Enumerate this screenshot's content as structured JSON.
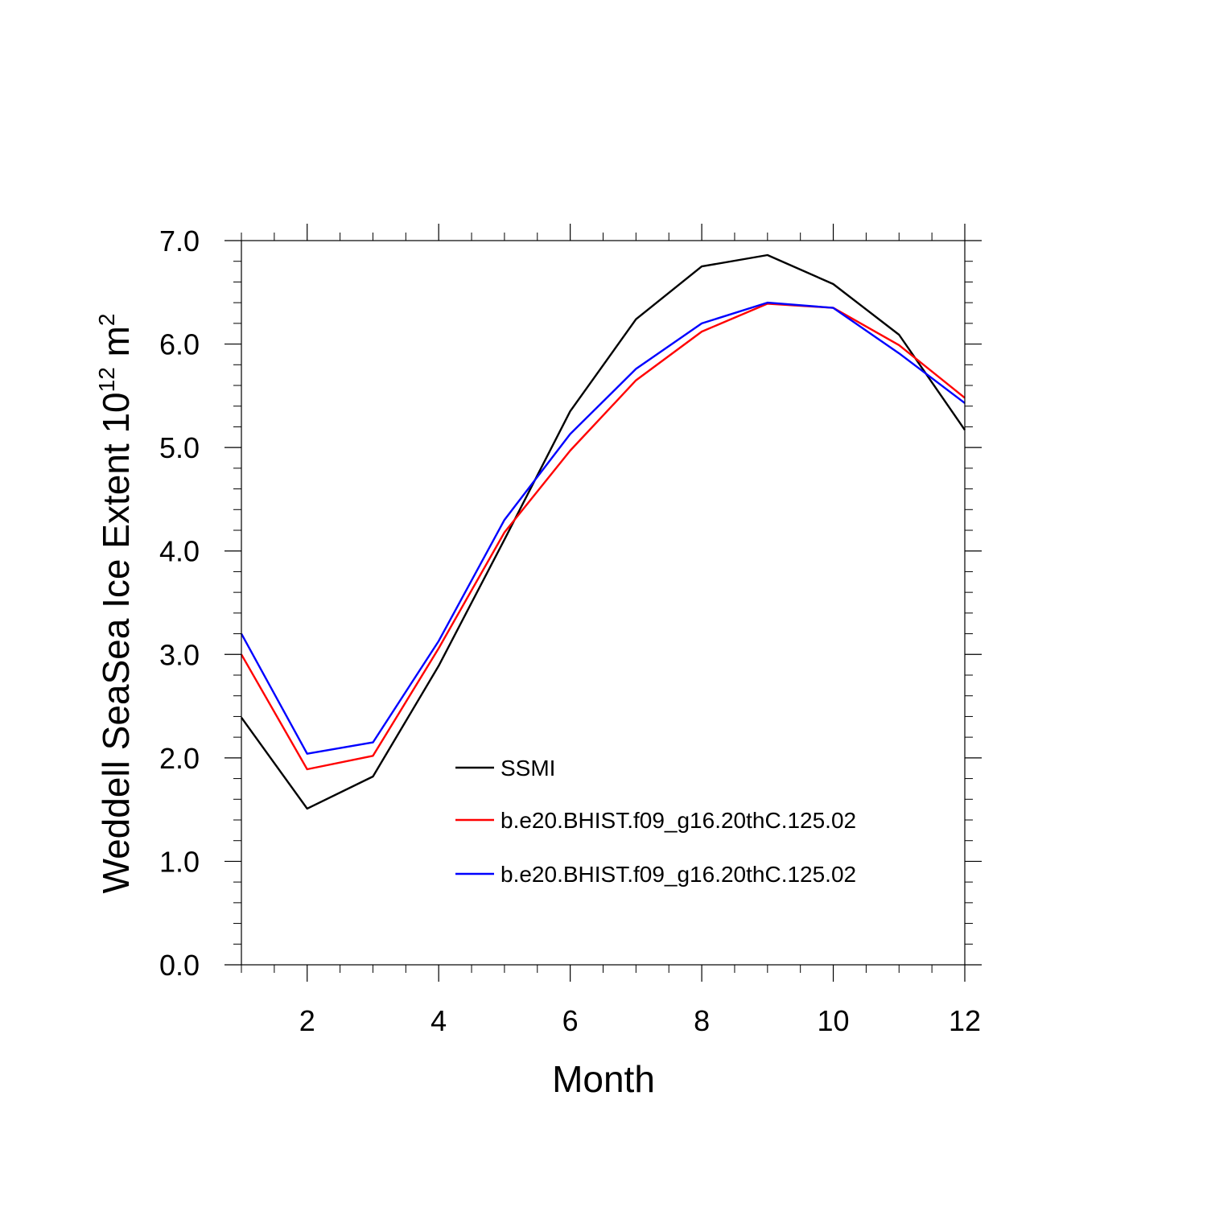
{
  "chart_data": {
    "type": "line",
    "title": "",
    "xlabel": "Month",
    "ylabel": {
      "prefix": "Weddell SeaSea Ice Extent 10",
      "sup1": "12",
      "unit": " m",
      "sup2": "2"
    },
    "xlim": [
      1,
      12
    ],
    "ylim": [
      0,
      7
    ],
    "x": [
      1,
      2,
      3,
      4,
      5,
      6,
      7,
      8,
      9,
      10,
      11,
      12
    ],
    "x_ticks": [
      2,
      4,
      6,
      8,
      10,
      12
    ],
    "x_tick_labels": [
      "2",
      "4",
      "6",
      "8",
      "10",
      "12"
    ],
    "y_ticks": [
      0,
      1,
      2,
      3,
      4,
      5,
      6,
      7
    ],
    "y_tick_labels": [
      "0.0",
      "1.0",
      "2.0",
      "3.0",
      "4.0",
      "5.0",
      "6.0",
      "7.0"
    ],
    "grid": false,
    "legend_position": "bottom-center",
    "series": [
      {
        "name": "SSMI",
        "color": "#000000",
        "values": [
          2.39,
          1.51,
          1.82,
          2.89,
          4.11,
          5.35,
          6.24,
          6.75,
          6.86,
          6.58,
          6.09,
          5.17
        ]
      },
      {
        "name": "b.e20.BHIST.f09_g16.20thC.125.02",
        "color": "#ff0000",
        "values": [
          3.0,
          1.89,
          2.02,
          3.06,
          4.18,
          4.97,
          5.65,
          6.12,
          6.39,
          6.35,
          5.99,
          5.48
        ]
      },
      {
        "name": "b.e20.BHIST.f09_g16.20thC.125.02",
        "color": "#0000ff",
        "values": [
          3.2,
          2.04,
          2.15,
          3.13,
          4.3,
          5.13,
          5.76,
          6.2,
          6.4,
          6.35,
          5.91,
          5.43
        ]
      }
    ]
  }
}
